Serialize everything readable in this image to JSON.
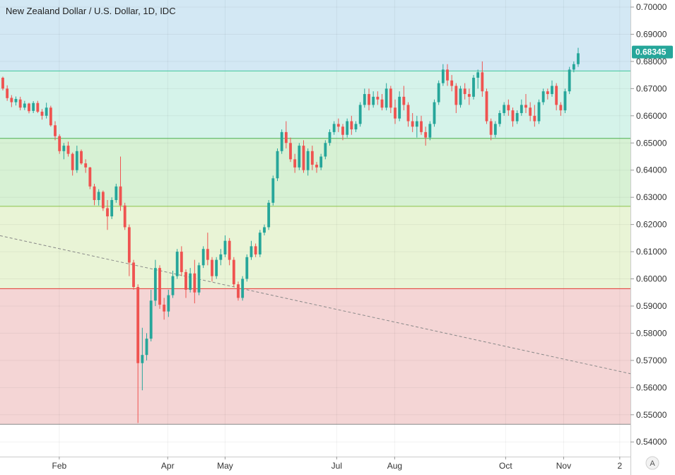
{
  "title": "New Zealand Dollar / U.S. Dollar, 1D, IDC",
  "auto_label": "A",
  "chart_data": {
    "type": "candlestick",
    "ylim": [
      0.5346,
      0.7026
    ],
    "y_ticks": [
      "0.70000",
      "0.69000",
      "0.68000",
      "0.67000",
      "0.66000",
      "0.65000",
      "0.64000",
      "0.63000",
      "0.62000",
      "0.61000",
      "0.60000",
      "0.59000",
      "0.58000",
      "0.57000",
      "0.56000",
      "0.55000",
      "0.54000"
    ],
    "x_ticks": [
      {
        "label": "Feb",
        "t": 0.094
      },
      {
        "label": "Apr",
        "t": 0.266
      },
      {
        "label": "May",
        "t": 0.357
      },
      {
        "label": "Jul",
        "t": 0.534
      },
      {
        "label": "Aug",
        "t": 0.626
      },
      {
        "label": "Oct",
        "t": 0.802
      },
      {
        "label": "Nov",
        "t": 0.894
      },
      {
        "label": "2",
        "t": 0.983
      }
    ],
    "last_price": "0.68345",
    "last_price_value": 0.68345,
    "zones": [
      {
        "from": 0.6765,
        "to": 0.7026,
        "color": "#d3e8f4"
      },
      {
        "from": 0.6517,
        "to": 0.6765,
        "color": "#d5f3ea"
      },
      {
        "from": 0.6267,
        "to": 0.6517,
        "color": "#d7f1d4"
      },
      {
        "from": 0.5964,
        "to": 0.6267,
        "color": "#e9f4d6"
      },
      {
        "from": 0.5465,
        "to": 0.5964,
        "color": "#f4d5d5"
      }
    ],
    "levels": [
      {
        "value": 0.6765,
        "color": "#3fc79b"
      },
      {
        "value": 0.6517,
        "color": "#4caf50"
      },
      {
        "value": 0.6267,
        "color": "#8bc34a"
      },
      {
        "value": 0.5964,
        "color": "#e53935"
      },
      {
        "value": 0.5465,
        "color": "#888888"
      }
    ],
    "trendline": {
      "t1": 0.0,
      "v1": 0.6159,
      "t2": 1.0,
      "v2": 0.5651
    },
    "up_color": "#26a69a",
    "down_color": "#ef5350",
    "price_tag_color": "#26a69a",
    "candles": [
      [
        0.674,
        0.6744,
        0.6693,
        0.67
      ],
      [
        0.67,
        0.6712,
        0.6655,
        0.6665
      ],
      [
        0.6666,
        0.6676,
        0.6632,
        0.665
      ],
      [
        0.665,
        0.6671,
        0.6638,
        0.6662
      ],
      [
        0.666,
        0.667,
        0.662,
        0.663
      ],
      [
        0.663,
        0.6655,
        0.6621,
        0.6645
      ],
      [
        0.6645,
        0.6648,
        0.6609,
        0.6617
      ],
      [
        0.6618,
        0.6654,
        0.661,
        0.6647
      ],
      [
        0.6647,
        0.6655,
        0.661,
        0.6615
      ],
      [
        0.6615,
        0.6625,
        0.6586,
        0.66
      ],
      [
        0.66,
        0.6648,
        0.659,
        0.663
      ],
      [
        0.663,
        0.6637,
        0.656,
        0.6565
      ],
      [
        0.6565,
        0.658,
        0.651,
        0.6525
      ],
      [
        0.6525,
        0.6532,
        0.646,
        0.647
      ],
      [
        0.647,
        0.65,
        0.644,
        0.649
      ],
      [
        0.649,
        0.6505,
        0.645,
        0.646
      ],
      [
        0.646,
        0.6465,
        0.638,
        0.64
      ],
      [
        0.64,
        0.649,
        0.639,
        0.647
      ],
      [
        0.647,
        0.6476,
        0.642,
        0.6425
      ],
      [
        0.6425,
        0.644,
        0.639,
        0.641
      ],
      [
        0.641,
        0.6412,
        0.633,
        0.634
      ],
      [
        0.634,
        0.635,
        0.6271,
        0.629
      ],
      [
        0.629,
        0.633,
        0.627,
        0.632
      ],
      [
        0.632,
        0.6325,
        0.625,
        0.626
      ],
      [
        0.626,
        0.629,
        0.618,
        0.623
      ],
      [
        0.623,
        0.63,
        0.622,
        0.629
      ],
      [
        0.629,
        0.635,
        0.628,
        0.634
      ],
      [
        0.634,
        0.645,
        0.625,
        0.627
      ],
      [
        0.627,
        0.628,
        0.618,
        0.619
      ],
      [
        0.619,
        0.62,
        0.601,
        0.606
      ],
      [
        0.606,
        0.607,
        0.596,
        0.597
      ],
      [
        0.597,
        0.598,
        0.547,
        0.569
      ],
      [
        0.569,
        0.582,
        0.559,
        0.572
      ],
      [
        0.572,
        0.58,
        0.57,
        0.578
      ],
      [
        0.578,
        0.596,
        0.577,
        0.592
      ],
      [
        0.592,
        0.607,
        0.59,
        0.604
      ],
      [
        0.604,
        0.605,
        0.589,
        0.5905
      ],
      [
        0.5905,
        0.593,
        0.585,
        0.588
      ],
      [
        0.588,
        0.596,
        0.586,
        0.594
      ],
      [
        0.594,
        0.603,
        0.593,
        0.601
      ],
      [
        0.601,
        0.611,
        0.6,
        0.61
      ],
      [
        0.61,
        0.612,
        0.601,
        0.6025
      ],
      [
        0.6025,
        0.6035,
        0.593,
        0.596
      ],
      [
        0.596,
        0.604,
        0.595,
        0.602
      ],
      [
        0.602,
        0.607,
        0.591,
        0.595
      ],
      [
        0.595,
        0.606,
        0.594,
        0.605
      ],
      [
        0.605,
        0.612,
        0.604,
        0.611
      ],
      [
        0.611,
        0.617,
        0.605,
        0.607
      ],
      [
        0.607,
        0.608,
        0.599,
        0.601
      ],
      [
        0.601,
        0.608,
        0.6,
        0.607
      ],
      [
        0.607,
        0.611,
        0.605,
        0.609
      ],
      [
        0.609,
        0.616,
        0.608,
        0.614
      ],
      [
        0.614,
        0.615,
        0.605,
        0.607
      ],
      [
        0.607,
        0.608,
        0.597,
        0.598
      ],
      [
        0.598,
        0.599,
        0.592,
        0.593
      ],
      [
        0.593,
        0.601,
        0.592,
        0.6
      ],
      [
        0.6,
        0.609,
        0.599,
        0.608
      ],
      [
        0.608,
        0.614,
        0.607,
        0.612
      ],
      [
        0.612,
        0.613,
        0.608,
        0.609
      ],
      [
        0.609,
        0.618,
        0.608,
        0.617
      ],
      [
        0.617,
        0.62,
        0.616,
        0.619
      ],
      [
        0.619,
        0.629,
        0.618,
        0.628
      ],
      [
        0.628,
        0.638,
        0.627,
        0.637
      ],
      [
        0.637,
        0.648,
        0.636,
        0.647
      ],
      [
        0.647,
        0.655,
        0.646,
        0.654
      ],
      [
        0.654,
        0.658,
        0.648,
        0.65
      ],
      [
        0.65,
        0.652,
        0.643,
        0.644
      ],
      [
        0.644,
        0.646,
        0.639,
        0.641
      ],
      [
        0.641,
        0.65,
        0.64,
        0.649
      ],
      [
        0.649,
        0.651,
        0.639,
        0.64
      ],
      [
        0.64,
        0.648,
        0.638,
        0.647
      ],
      [
        0.647,
        0.649,
        0.64,
        0.642
      ],
      [
        0.642,
        0.643,
        0.639,
        0.641
      ],
      [
        0.641,
        0.646,
        0.64,
        0.645
      ],
      [
        0.645,
        0.651,
        0.644,
        0.65
      ],
      [
        0.65,
        0.655,
        0.649,
        0.654
      ],
      [
        0.654,
        0.658,
        0.653,
        0.657
      ],
      [
        0.657,
        0.659,
        0.654,
        0.656
      ],
      [
        0.656,
        0.657,
        0.651,
        0.653
      ],
      [
        0.653,
        0.659,
        0.652,
        0.658
      ],
      [
        0.658,
        0.66,
        0.653,
        0.655
      ],
      [
        0.655,
        0.658,
        0.654,
        0.657
      ],
      [
        0.657,
        0.665,
        0.656,
        0.664
      ],
      [
        0.664,
        0.67,
        0.663,
        0.668
      ],
      [
        0.668,
        0.67,
        0.662,
        0.664
      ],
      [
        0.664,
        0.669,
        0.663,
        0.667
      ],
      [
        0.667,
        0.669,
        0.664,
        0.666
      ],
      [
        0.666,
        0.668,
        0.662,
        0.663
      ],
      [
        0.663,
        0.672,
        0.662,
        0.67
      ],
      [
        0.67,
        0.671,
        0.661,
        0.663
      ],
      [
        0.663,
        0.666,
        0.657,
        0.659
      ],
      [
        0.659,
        0.669,
        0.658,
        0.667
      ],
      [
        0.667,
        0.671,
        0.662,
        0.664
      ],
      [
        0.664,
        0.665,
        0.656,
        0.658
      ],
      [
        0.658,
        0.661,
        0.654,
        0.656
      ],
      [
        0.656,
        0.66,
        0.652,
        0.658
      ],
      [
        0.658,
        0.66,
        0.653,
        0.654
      ],
      [
        0.654,
        0.656,
        0.649,
        0.652
      ],
      [
        0.652,
        0.658,
        0.651,
        0.657
      ],
      [
        0.657,
        0.666,
        0.656,
        0.665
      ],
      [
        0.665,
        0.673,
        0.664,
        0.672
      ],
      [
        0.672,
        0.679,
        0.671,
        0.677
      ],
      [
        0.677,
        0.679,
        0.671,
        0.673
      ],
      [
        0.673,
        0.675,
        0.669,
        0.671
      ],
      [
        0.671,
        0.672,
        0.661,
        0.664
      ],
      [
        0.664,
        0.671,
        0.663,
        0.67
      ],
      [
        0.67,
        0.672,
        0.666,
        0.668
      ],
      [
        0.668,
        0.67,
        0.664,
        0.667
      ],
      [
        0.667,
        0.675,
        0.666,
        0.674
      ],
      [
        0.674,
        0.677,
        0.67,
        0.676
      ],
      [
        0.676,
        0.68,
        0.667,
        0.669
      ],
      [
        0.669,
        0.67,
        0.657,
        0.658
      ],
      [
        0.658,
        0.659,
        0.651,
        0.653
      ],
      [
        0.653,
        0.658,
        0.652,
        0.657
      ],
      [
        0.657,
        0.662,
        0.656,
        0.661
      ],
      [
        0.661,
        0.665,
        0.66,
        0.664
      ],
      [
        0.664,
        0.666,
        0.66,
        0.662
      ],
      [
        0.662,
        0.663,
        0.656,
        0.658
      ],
      [
        0.658,
        0.662,
        0.657,
        0.661
      ],
      [
        0.661,
        0.666,
        0.66,
        0.664
      ],
      [
        0.664,
        0.668,
        0.661,
        0.663
      ],
      [
        0.663,
        0.665,
        0.658,
        0.66
      ],
      [
        0.66,
        0.664,
        0.656,
        0.658
      ],
      [
        0.658,
        0.666,
        0.657,
        0.665
      ],
      [
        0.665,
        0.67,
        0.664,
        0.669
      ],
      [
        0.669,
        0.67,
        0.666,
        0.668
      ],
      [
        0.668,
        0.673,
        0.667,
        0.671
      ],
      [
        0.671,
        0.672,
        0.662,
        0.664
      ],
      [
        0.664,
        0.665,
        0.66,
        0.662
      ],
      [
        0.662,
        0.67,
        0.661,
        0.669
      ],
      [
        0.669,
        0.678,
        0.668,
        0.677
      ],
      [
        0.677,
        0.68,
        0.676,
        0.679
      ],
      [
        0.679,
        0.685,
        0.678,
        0.683
      ]
    ]
  }
}
